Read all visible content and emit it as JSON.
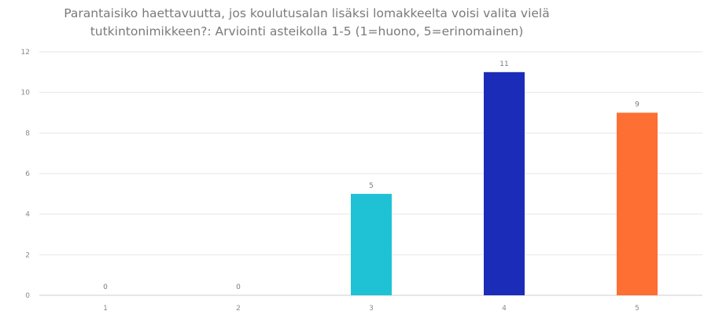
{
  "chart_data": {
    "type": "bar",
    "title_lines": [
      "Parantaisiko haettavuutta, jos koulutusalan lisäksi lomakkeelta voisi valita vielä",
      "tutkintonimikkeen?: Arviointi asteikolla 1-5 (1=huono, 5=erinomainen)"
    ],
    "categories": [
      "1",
      "2",
      "3",
      "4",
      "5"
    ],
    "values": [
      0,
      0,
      5,
      11,
      9
    ],
    "bar_colors": [
      "#1fc2d4",
      "#1fc2d4",
      "#1fc2d4",
      "#1b2db8",
      "#fd6f32"
    ],
    "ylim": [
      0,
      12
    ],
    "yticks": [
      0,
      2,
      4,
      6,
      8,
      10,
      12
    ],
    "grid": true,
    "legend": "none"
  }
}
